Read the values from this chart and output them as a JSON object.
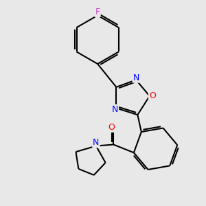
{
  "background_color": "#e8e8e8",
  "bond_color": "#000000",
  "atom_colors": {
    "F": "#cc44cc",
    "N": "#0000ff",
    "O": "#ff0000",
    "C": "#000000"
  },
  "bond_width": 1.5,
  "font_size_atom": 9
}
